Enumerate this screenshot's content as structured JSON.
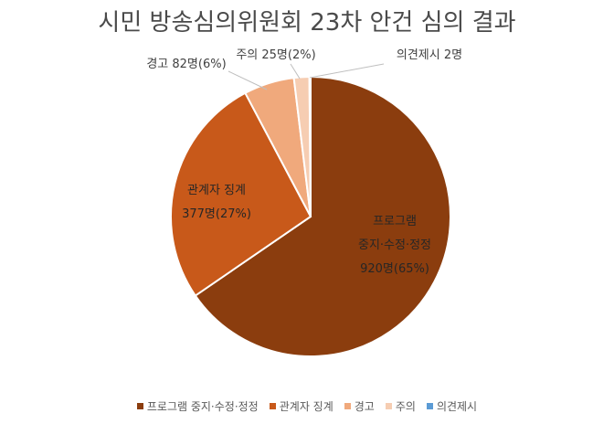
{
  "chart_data": {
    "type": "pie",
    "title": "시민 방송심의위원회 23차 안건 심의 결과",
    "slices": [
      {
        "name": "프로그램 중지·수정·정정",
        "value": 920,
        "percent": 65,
        "color": "#8B3D0E",
        "label_lines": [
          "프로그램",
          "중지·수정·정정",
          "920명(65%)"
        ],
        "label_inside": true
      },
      {
        "name": "관계자 징계",
        "value": 377,
        "percent": 27,
        "color": "#C8591A",
        "label_lines": [
          "관계자 징계",
          "377명(27%)"
        ],
        "label_inside": true
      },
      {
        "name": "경고",
        "value": 82,
        "percent": 6,
        "color": "#F0A97C",
        "label_lines": [
          "경고 82명(6%)"
        ],
        "label_inside": false
      },
      {
        "name": "주의",
        "value": 25,
        "percent": 2,
        "color": "#F6CDB2",
        "label_lines": [
          "주의 25명(2%)"
        ],
        "label_inside": false
      },
      {
        "name": "의견제시",
        "value": 2,
        "percent": 0,
        "color": "#5B9BD5",
        "label_lines": [
          "의견제시 2명"
        ],
        "label_inside": false
      }
    ],
    "legend_position": "bottom"
  }
}
